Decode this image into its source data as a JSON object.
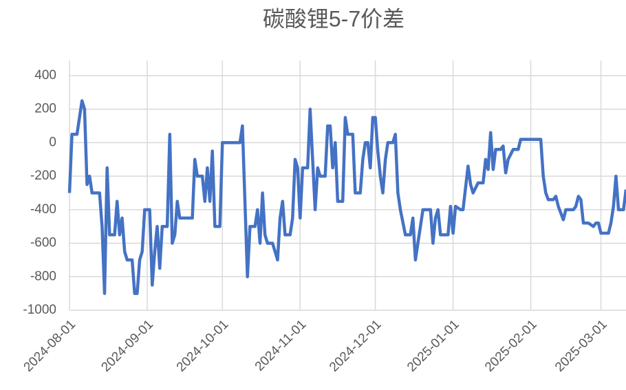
{
  "chart_data": {
    "type": "line",
    "title": "碳酸锂5-7价差",
    "x": [
      "2024-08-01",
      "2024-08-02",
      "2024-08-04",
      "2024-08-06",
      "2024-08-07",
      "2024-08-08",
      "2024-08-09",
      "2024-08-10",
      "2024-08-13",
      "2024-08-14",
      "2024-08-15",
      "2024-08-16",
      "2024-08-17",
      "2024-08-19",
      "2024-08-20",
      "2024-08-21",
      "2024-08-22",
      "2024-08-23",
      "2024-08-24",
      "2024-08-26",
      "2024-08-27",
      "2024-08-28",
      "2024-08-29",
      "2024-08-30",
      "2024-08-31",
      "2024-09-02",
      "2024-09-03",
      "2024-09-04",
      "2024-09-05",
      "2024-09-06",
      "2024-09-07",
      "2024-09-09",
      "2024-09-10",
      "2024-09-11",
      "2024-09-12",
      "2024-09-13",
      "2024-09-14",
      "2024-09-19",
      "2024-09-20",
      "2024-09-21",
      "2024-09-23",
      "2024-09-24",
      "2024-09-25",
      "2024-09-26",
      "2024-09-27",
      "2024-09-28",
      "2024-09-30",
      "2024-10-01",
      "2024-10-08",
      "2024-10-09",
      "2024-10-11",
      "2024-10-12",
      "2024-10-14",
      "2024-10-15",
      "2024-10-16",
      "2024-10-17",
      "2024-10-18",
      "2024-10-19",
      "2024-10-21",
      "2024-10-23",
      "2024-10-24",
      "2024-10-25",
      "2024-10-26",
      "2024-10-28",
      "2024-10-29",
      "2024-10-30",
      "2024-10-31",
      "2024-11-01",
      "2024-11-02",
      "2024-11-04",
      "2024-11-05",
      "2024-11-07",
      "2024-11-08",
      "2024-11-09",
      "2024-11-11",
      "2024-11-12",
      "2024-11-13",
      "2024-11-14",
      "2024-11-15",
      "2024-11-16",
      "2024-11-18",
      "2024-11-19",
      "2024-11-20",
      "2024-11-22",
      "2024-11-23",
      "2024-11-25",
      "2024-11-26",
      "2024-11-27",
      "2024-11-28",
      "2024-11-29",
      "2024-11-30",
      "2024-12-01",
      "2024-12-02",
      "2024-12-03",
      "2024-12-04",
      "2024-12-05",
      "2024-12-06",
      "2024-12-08",
      "2024-12-09",
      "2024-12-10",
      "2024-12-11",
      "2024-12-13",
      "2024-12-15",
      "2024-12-16",
      "2024-12-17",
      "2024-12-18",
      "2024-12-20",
      "2024-12-23",
      "2024-12-24",
      "2024-12-25",
      "2024-12-26",
      "2024-12-27",
      "2024-12-30",
      "2024-12-31",
      "2025-01-01",
      "2025-01-02",
      "2025-01-04",
      "2025-01-05",
      "2025-01-07",
      "2025-01-08",
      "2025-01-09",
      "2025-01-11",
      "2025-01-13",
      "2025-01-14",
      "2025-01-15",
      "2025-01-16",
      "2025-01-17",
      "2025-01-18",
      "2025-01-20",
      "2025-01-21",
      "2025-01-22",
      "2025-01-23",
      "2025-01-25",
      "2025-01-27",
      "2025-01-28",
      "2025-02-05",
      "2025-02-06",
      "2025-02-07",
      "2025-02-08",
      "2025-02-10",
      "2025-02-11",
      "2025-02-12",
      "2025-02-14",
      "2025-02-15",
      "2025-02-18",
      "2025-02-19",
      "2025-02-20",
      "2025-02-21",
      "2025-02-22",
      "2025-02-24",
      "2025-02-26",
      "2025-02-27",
      "2025-02-28",
      "2025-03-01",
      "2025-03-03",
      "2025-03-04",
      "2025-03-05",
      "2025-03-06",
      "2025-03-07",
      "2025-03-08",
      "2025-03-10",
      "2025-03-11"
    ],
    "series": [
      {
        "name": "碳酸锂5-7价差",
        "color": "#4472c4",
        "values": [
          -300,
          50,
          50,
          250,
          200,
          -250,
          -200,
          -300,
          -300,
          -500,
          -900,
          -150,
          -550,
          -550,
          -350,
          -550,
          -450,
          -650,
          -700,
          -700,
          -900,
          -900,
          -700,
          -650,
          -400,
          -400,
          -850,
          -650,
          -500,
          -750,
          -500,
          -500,
          50,
          -600,
          -550,
          -350,
          -450,
          -450,
          -100,
          -200,
          -200,
          -350,
          -150,
          -350,
          -50,
          -500,
          -500,
          0,
          0,
          100,
          -800,
          -500,
          -500,
          -400,
          -600,
          -300,
          -550,
          -600,
          -600,
          -700,
          -450,
          -350,
          -550,
          -550,
          -450,
          -100,
          -150,
          -450,
          -150,
          -150,
          200,
          -400,
          -150,
          -200,
          -200,
          100,
          100,
          -150,
          0,
          -350,
          -350,
          150,
          50,
          50,
          -300,
          -300,
          -100,
          0,
          0,
          -150,
          150,
          150,
          -50,
          -200,
          -300,
          -100,
          0,
          0,
          50,
          -300,
          -400,
          -550,
          -550,
          -450,
          -700,
          -600,
          -400,
          -400,
          -600,
          -450,
          -400,
          -550,
          -550,
          -380,
          -540,
          -380,
          -400,
          -400,
          -140,
          -250,
          -300,
          -240,
          -240,
          -100,
          -160,
          60,
          -160,
          -40,
          -40,
          -20,
          -180,
          -100,
          -40,
          -40,
          20,
          20,
          -200,
          -300,
          -340,
          -340,
          -320,
          -380,
          -460,
          -400,
          -400,
          -380,
          -320,
          -340,
          -480,
          -480,
          -500,
          -480,
          -480,
          -540,
          -540,
          -540,
          -480,
          -380,
          -200,
          -400,
          -400,
          -280
        ]
      }
    ],
    "xlim": [
      "2024-08-01",
      "2025-03-11"
    ],
    "xticks": [
      "2024-08-01",
      "2024-09-01",
      "2024-10-01",
      "2024-11-01",
      "2024-12-01",
      "2025-01-01",
      "2025-02-01",
      "2025-03-01"
    ],
    "ylim": [
      -1000,
      400
    ],
    "yticks": [
      400,
      200,
      0,
      -200,
      -400,
      -600,
      -800,
      -1000
    ],
    "grid": true
  }
}
